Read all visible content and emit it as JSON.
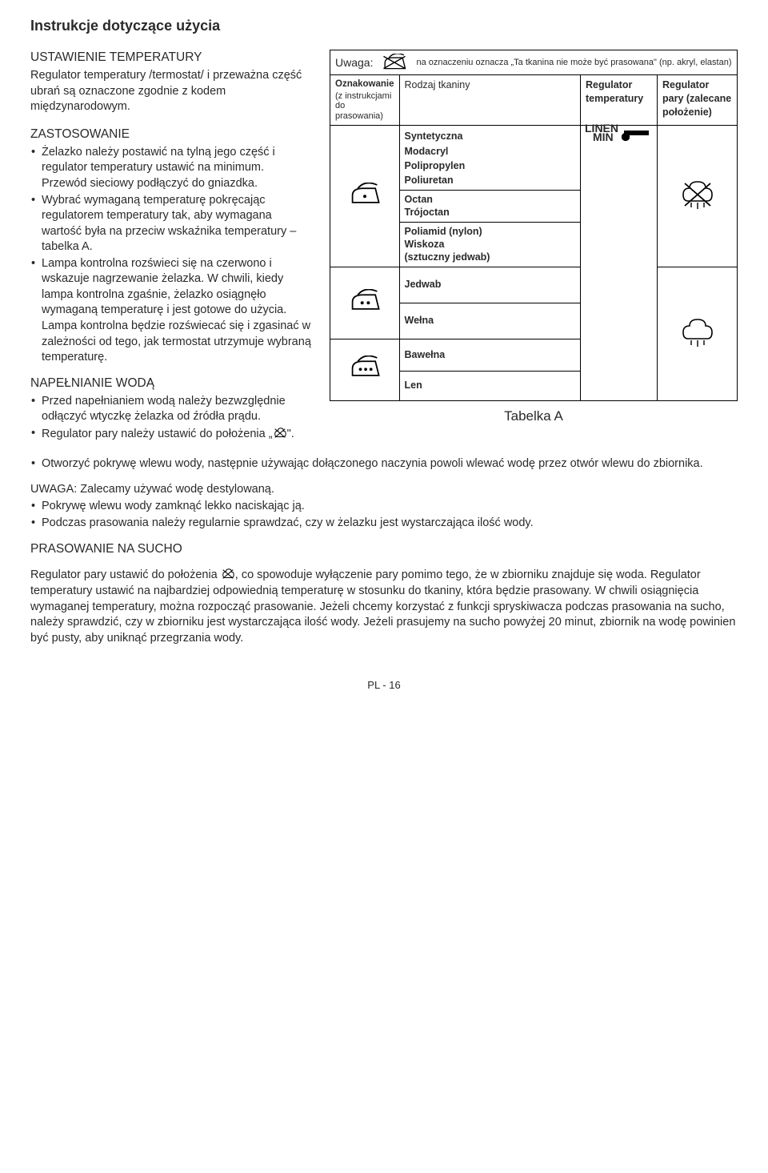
{
  "title": "Instrukcje dotyczące użycia",
  "sec1": {
    "head": "USTAWIENIE TEMPERATURY",
    "para": "Regulator temperatury /termostat/ i przeważna część ubrań są oznaczone zgodnie z kodem międzynarodowym."
  },
  "sec2": {
    "head": "ZASTOSOWANIE",
    "b1": "Żelazko należy postawić na tylną jego część i regulator temperatury ustawić na minimum. Przewód sieciowy podłączyć do gniazdka.",
    "b2": "Wybrać wymaganą temperaturę pokręcając regulatorem temperatury tak, aby wymagana wartość była na przeciw wskaźnika temperatury – tabelka A.",
    "b3": "Lampa kontrolna rozświeci się na czerwono i wskazuje nagrzewanie żelazka. W chwili, kiedy lampa kontrolna zgaśnie, żelazko osiągnęło wymaganą temperaturę i jest gotowe do użycia. Lampa kontrolna będzie rozświecać się i zgasinać  w zależności od tego, jak termostat utrzymuje wybraną temperaturę."
  },
  "sec3": {
    "head": "NAPEŁNIANIE WODĄ",
    "b1": "Przed napełnianiem wodą należy bezwzględnie odłączyć wtyczkę żelazka od źródła prądu.",
    "b2a": "Regulator pary należy ustawić do położenia „",
    "b2b": "\".",
    "b3": "Otworzyć pokrywę wlewu wody, następnie używając dołączonego naczynia powoli wlewać wodę przez otwór wlewu do zbiornika."
  },
  "uwagaNote": {
    "head": "UWAGA: Zalecamy używać wodę destylowaną.",
    "b1": "Pokrywę wlewu wody zamknąć lekko naciskając ją.",
    "b2": "Podczas prasowania należy regularnie sprawdzać, czy w żelazku jest wystarczająca ilość wody."
  },
  "sec4": {
    "head": "PRASOWANIE NA SUCHO",
    "p1a": "Regulator pary ustawić do położenia ",
    "p1b": ", co spowoduje wyłączenie pary pomimo tego, że w zbiorniku znajduje się woda. Regulator temperatury ustawić na najbardziej odpowiednią temperaturę w stosunku do tkaniny, która będzie prasowany. W chwili osiągnięcia wymaganej temperatury, można rozpocząć prasowanie. Jeżeli chcemy korzystać z funkcji spryskiwacza podczas prasowania na sucho, należy sprawdzić, czy w zbiorniku jest wystarczająca ilość wody. Jeżeli prasujemy na sucho powyżej 20 minut, zbiornik na wodę powinien być pusty, aby uniknąć przegrzania wody."
  },
  "footer": "PL - 16",
  "table": {
    "uwaga_label": "Uwaga:",
    "uwaga_text": "na oznaczeniu oznacza „Ta tkanina nie może być prasowana\" (np. akryl, elastan)",
    "col1a": "Oznakowanie",
    "col1b": "(z instrukcjami do prasowania)",
    "col2": "Rodzaj tkaniny",
    "col3": "Regulator temperatury",
    "col4": "Regulator pary (zalecane położenie)",
    "caption": "Tabelka A",
    "min": "MIN",
    "linen": "LINEN",
    "rows": [
      {
        "fabrics": [
          "Syntetyczna",
          "",
          "Modacryl",
          "Polipropylen",
          "Poliuretan"
        ]
      },
      {
        "fabrics": [
          "Octan",
          "Trójoctan"
        ]
      },
      {
        "fabrics": [
          "Poliamid (nylon)",
          "Wiskoza",
          "(sztuczny jedwab)"
        ]
      },
      {
        "fabrics": [
          "Jedwab"
        ]
      },
      {
        "fabrics": [
          "Wełna"
        ]
      },
      {
        "fabrics": [
          "Bawełna"
        ]
      },
      {
        "fabrics": [
          "Len"
        ]
      }
    ],
    "dot_pct": [
      10,
      22,
      37,
      54,
      66,
      80,
      94
    ],
    "steam_row1": "no-steam",
    "steam_row3": "steam"
  }
}
